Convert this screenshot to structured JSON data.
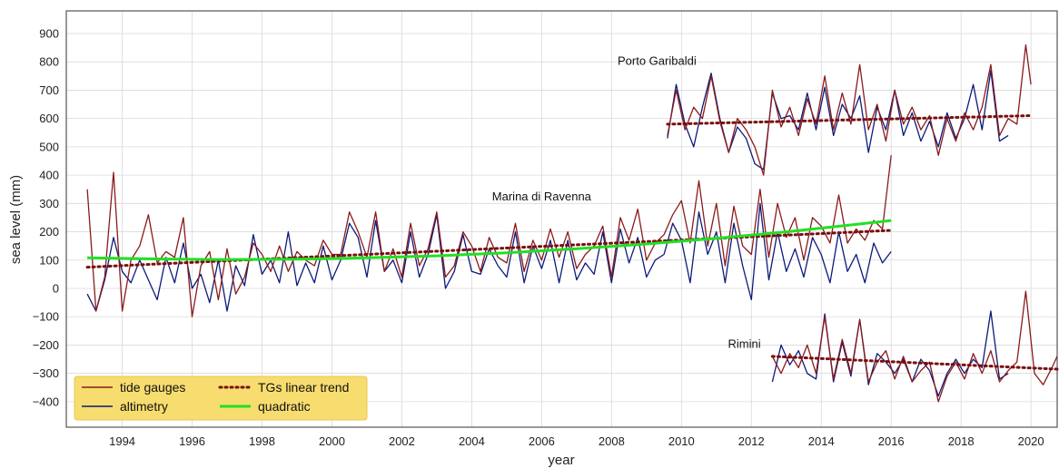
{
  "chart_data": {
    "type": "line",
    "title": "",
    "xlabel": "year",
    "ylabel": "sea level (mm)",
    "xlim": [
      1992.4,
      2020.75
    ],
    "ylim": [
      -490,
      980
    ],
    "x_ticks": [
      1994,
      1996,
      1998,
      2000,
      2002,
      2004,
      2006,
      2008,
      2010,
      2012,
      2014,
      2016,
      2018,
      2020
    ],
    "y_ticks": [
      -400,
      -300,
      -200,
      -100,
      0,
      100,
      200,
      300,
      400,
      500,
      600,
      700,
      800,
      900
    ],
    "grid": true,
    "legend_placement": "bottom-left",
    "colors": {
      "tide_gauges": "#8b1a1a",
      "altimetry": "#0d1a7a",
      "linear_trend": "#7a0f0f",
      "quadratic": "#22e022",
      "legend_bg": "#f7dc6f"
    },
    "legend": [
      {
        "label": "tide gauges",
        "style": "solid",
        "color": "#8b1a1a"
      },
      {
        "label": "altimetry",
        "style": "solid",
        "color": "#0d1a7a"
      },
      {
        "label": "TGs linear trend",
        "style": "dotted",
        "color": "#7a0f0f"
      },
      {
        "label": "quadratic",
        "style": "thick",
        "color": "#22e022"
      }
    ],
    "annotations": [
      {
        "text": "Porto Garibaldi",
        "x": 2009.3,
        "y": 790
      },
      {
        "text": "Marina di Ravenna",
        "x": 2006.0,
        "y": 310
      },
      {
        "text": "Rimini",
        "x": 2011.8,
        "y": -210
      }
    ],
    "series": [
      {
        "station": "Marina di Ravenna",
        "kind": "tide gauges",
        "x": [
          1993.0,
          1993.25,
          1993.5,
          1993.75,
          1994.0,
          1994.25,
          1994.5,
          1994.75,
          1995.0,
          1995.25,
          1995.5,
          1995.75,
          1996.0,
          1996.25,
          1996.5,
          1996.75,
          1997.0,
          1997.25,
          1997.5,
          1997.75,
          1998.0,
          1998.25,
          1998.5,
          1998.75,
          1999.0,
          1999.25,
          1999.5,
          1999.75,
          2000.0,
          2000.25,
          2000.5,
          2000.75,
          2001.0,
          2001.25,
          2001.5,
          2001.75,
          2002.0,
          2002.25,
          2002.5,
          2002.75,
          2003.0,
          2003.25,
          2003.5,
          2003.75,
          2004.0,
          2004.25,
          2004.5,
          2004.75,
          2005.0,
          2005.25,
          2005.5,
          2005.75,
          2006.0,
          2006.25,
          2006.5,
          2006.75,
          2007.0,
          2007.25,
          2007.5,
          2007.75,
          2008.0,
          2008.25,
          2008.5,
          2008.75,
          2009.0,
          2009.25,
          2009.5,
          2009.75,
          2010.0,
          2010.25,
          2010.5,
          2010.75,
          2011.0,
          2011.25,
          2011.5,
          2011.75,
          2012.0,
          2012.25,
          2012.5,
          2012.75,
          2013.0,
          2013.25,
          2013.5,
          2013.75,
          2014.0,
          2014.25,
          2014.5,
          2014.75,
          2015.0,
          2015.25,
          2015.5,
          2015.75,
          2016.0
        ],
        "values": [
          350,
          -80,
          40,
          410,
          -80,
          100,
          150,
          260,
          90,
          130,
          110,
          250,
          -100,
          80,
          130,
          -40,
          140,
          -20,
          40,
          160,
          120,
          60,
          150,
          60,
          130,
          100,
          80,
          170,
          120,
          120,
          270,
          200,
          110,
          270,
          60,
          140,
          40,
          230,
          80,
          140,
          270,
          40,
          80,
          200,
          150,
          60,
          180,
          110,
          90,
          230,
          60,
          170,
          100,
          210,
          110,
          200,
          70,
          120,
          150,
          220,
          40,
          250,
          170,
          280,
          100,
          160,
          190,
          260,
          310,
          160,
          380,
          150,
          300,
          80,
          290,
          150,
          120,
          350,
          110,
          300,
          180,
          250,
          100,
          250,
          220,
          160,
          330,
          160,
          210,
          170,
          240,
          210,
          470
        ]
      },
      {
        "station": "Marina di Ravenna",
        "kind": "altimetry",
        "x": [
          1993.0,
          1993.25,
          1993.5,
          1993.75,
          1994.0,
          1994.25,
          1994.5,
          1994.75,
          1995.0,
          1995.25,
          1995.5,
          1995.75,
          1996.0,
          1996.25,
          1996.5,
          1996.75,
          1997.0,
          1997.25,
          1997.5,
          1997.75,
          1998.0,
          1998.25,
          1998.5,
          1998.75,
          1999.0,
          1999.25,
          1999.5,
          1999.75,
          2000.0,
          2000.25,
          2000.5,
          2000.75,
          2001.0,
          2001.25,
          2001.5,
          2001.75,
          2002.0,
          2002.25,
          2002.5,
          2002.75,
          2003.0,
          2003.25,
          2003.5,
          2003.75,
          2004.0,
          2004.25,
          2004.5,
          2004.75,
          2005.0,
          2005.25,
          2005.5,
          2005.75,
          2006.0,
          2006.25,
          2006.5,
          2006.75,
          2007.0,
          2007.25,
          2007.5,
          2007.75,
          2008.0,
          2008.25,
          2008.5,
          2008.75,
          2009.0,
          2009.25,
          2009.5,
          2009.75,
          2010.0,
          2010.25,
          2010.5,
          2010.75,
          2011.0,
          2011.25,
          2011.5,
          2011.75,
          2012.0,
          2012.25,
          2012.5,
          2012.75,
          2013.0,
          2013.25,
          2013.5,
          2013.75,
          2014.0,
          2014.25,
          2014.5,
          2014.75,
          2015.0,
          2015.25,
          2015.5,
          2015.75,
          2016.0
        ],
        "values": [
          -20,
          -80,
          30,
          180,
          60,
          20,
          100,
          30,
          -40,
          110,
          20,
          160,
          0,
          50,
          -50,
          100,
          -80,
          80,
          10,
          190,
          50,
          100,
          20,
          200,
          10,
          90,
          20,
          150,
          30,
          100,
          230,
          180,
          40,
          240,
          60,
          100,
          20,
          200,
          40,
          120,
          260,
          0,
          60,
          190,
          60,
          50,
          140,
          80,
          40,
          200,
          20,
          150,
          70,
          170,
          20,
          170,
          30,
          90,
          50,
          200,
          20,
          210,
          90,
          180,
          40,
          100,
          120,
          230,
          170,
          20,
          270,
          120,
          200,
          20,
          230,
          80,
          -40,
          300,
          30,
          200,
          60,
          140,
          40,
          180,
          120,
          20,
          200,
          60,
          120,
          20,
          160,
          90,
          130
        ]
      },
      {
        "station": "Porto Garibaldi",
        "kind": "tide gauges",
        "x": [
          2009.6,
          2009.85,
          2010.1,
          2010.35,
          2010.6,
          2010.85,
          2011.1,
          2011.35,
          2011.6,
          2011.85,
          2012.1,
          2012.35,
          2012.6,
          2012.85,
          2013.1,
          2013.35,
          2013.6,
          2013.85,
          2014.1,
          2014.35,
          2014.6,
          2014.85,
          2015.1,
          2015.35,
          2015.6,
          2015.85,
          2016.1,
          2016.35,
          2016.6,
          2016.85,
          2017.1,
          2017.35,
          2017.6,
          2017.85,
          2018.1,
          2018.35,
          2018.6,
          2018.85,
          2019.1,
          2019.35,
          2019.6,
          2019.85,
          2020.0
        ],
        "values": [
          540,
          700,
          560,
          640,
          600,
          750,
          590,
          480,
          600,
          560,
          500,
          400,
          700,
          570,
          640,
          540,
          670,
          580,
          750,
          560,
          690,
          580,
          790,
          560,
          650,
          520,
          700,
          580,
          640,
          560,
          610,
          470,
          600,
          520,
          620,
          560,
          640,
          790,
          540,
          600,
          580,
          860,
          720
        ]
      },
      {
        "station": "Porto Garibaldi",
        "kind": "altimetry",
        "x": [
          2009.6,
          2009.85,
          2010.1,
          2010.35,
          2010.6,
          2010.85,
          2011.1,
          2011.35,
          2011.6,
          2011.85,
          2012.1,
          2012.35,
          2012.6,
          2012.85,
          2013.1,
          2013.35,
          2013.6,
          2013.85,
          2014.1,
          2014.35,
          2014.6,
          2014.85,
          2015.1,
          2015.35,
          2015.6,
          2015.85,
          2016.1,
          2016.35,
          2016.6,
          2016.85,
          2017.1,
          2017.35,
          2017.6,
          2017.85,
          2018.1,
          2018.35,
          2018.6,
          2018.85,
          2019.1,
          2019.35
        ],
        "values": [
          530,
          720,
          580,
          500,
          640,
          760,
          600,
          480,
          570,
          530,
          440,
          420,
          690,
          600,
          610,
          560,
          690,
          560,
          710,
          540,
          650,
          600,
          680,
          480,
          640,
          560,
          700,
          540,
          620,
          520,
          590,
          500,
          620,
          530,
          600,
          720,
          560,
          770,
          520,
          540
        ]
      },
      {
        "station": "Rimini",
        "kind": "tide gauges",
        "x": [
          2012.6,
          2012.85,
          2013.1,
          2013.35,
          2013.6,
          2013.85,
          2014.1,
          2014.35,
          2014.6,
          2014.85,
          2015.1,
          2015.35,
          2015.6,
          2015.85,
          2016.1,
          2016.35,
          2016.6,
          2016.85,
          2017.1,
          2017.35,
          2017.6,
          2017.85,
          2018.1,
          2018.35,
          2018.6,
          2018.85,
          2019.1,
          2019.35,
          2019.6,
          2019.85,
          2020.1,
          2020.35,
          2020.6,
          2020.75
        ],
        "values": [
          -240,
          -300,
          -230,
          -280,
          -200,
          -300,
          -100,
          -320,
          -180,
          -300,
          -110,
          -330,
          -260,
          -220,
          -320,
          -240,
          -330,
          -290,
          -260,
          -400,
          -310,
          -260,
          -320,
          -230,
          -300,
          -220,
          -330,
          -290,
          -260,
          -10,
          -300,
          -340,
          -280,
          -240
        ]
      },
      {
        "station": "Rimini",
        "kind": "altimetry",
        "x": [
          2012.6,
          2012.85,
          2013.1,
          2013.35,
          2013.6,
          2013.85,
          2014.1,
          2014.35,
          2014.6,
          2014.85,
          2015.1,
          2015.35,
          2015.6,
          2015.85,
          2016.1,
          2016.35,
          2016.6,
          2016.85,
          2017.1,
          2017.35,
          2017.6,
          2017.85,
          2018.1,
          2018.35,
          2018.6,
          2018.85,
          2019.1,
          2019.35
        ],
        "values": [
          -330,
          -200,
          -270,
          -220,
          -300,
          -320,
          -90,
          -330,
          -190,
          -310,
          -110,
          -340,
          -230,
          -260,
          -300,
          -250,
          -330,
          -250,
          -290,
          -380,
          -300,
          -250,
          -300,
          -250,
          -280,
          -80,
          -320,
          -300
        ]
      },
      {
        "station": "Marina di Ravenna",
        "kind": "TGs linear trend",
        "x": [
          1993.0,
          2016.0
        ],
        "values": [
          75,
          205
        ]
      },
      {
        "station": "Porto Garibaldi",
        "kind": "TGs linear trend",
        "x": [
          2009.6,
          2020.0
        ],
        "values": [
          580,
          610
        ]
      },
      {
        "station": "Rimini",
        "kind": "TGs linear trend",
        "x": [
          2012.6,
          2020.75
        ],
        "values": [
          -240,
          -285
        ]
      },
      {
        "station": "Marina di Ravenna",
        "kind": "quadratic",
        "x": [
          1993.0,
          1995.0,
          1997.0,
          1999.0,
          2001.0,
          2003.0,
          2005.0,
          2007.0,
          2009.0,
          2011.0,
          2013.0,
          2015.0,
          2016.0
        ],
        "values": [
          108,
          104,
          102,
          103,
          108,
          115,
          126,
          140,
          157,
          177,
          200,
          226,
          240
        ]
      }
    ]
  }
}
